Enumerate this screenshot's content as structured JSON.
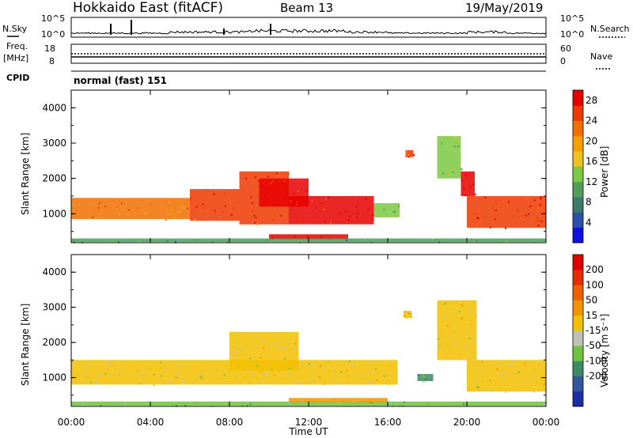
{
  "header": {
    "station": "Hokkaido East (fitACF)",
    "beam": "Beam 13",
    "date": "19/May/2019"
  },
  "top_panels": {
    "nsky_label": "N.Sky",
    "nsky_ticks": [
      "10^5",
      "10^0"
    ],
    "nsearch_label": "N.Search",
    "nsearch_ticks": [
      "10^5",
      "10^0"
    ],
    "freq_label_line1": "Freq.",
    "freq_label_line2": "[MHz]",
    "freq_ticks": [
      "18",
      "8"
    ],
    "nave_label": "Nave",
    "nave_ticks": [
      "60",
      "0"
    ],
    "cpid_label": "CPID",
    "cpid_value": "normal (fast) 151"
  },
  "colors": {
    "power_scale": [
      "#1010e0",
      "#2c4fa8",
      "#3c7a6a",
      "#4f9e5a",
      "#7cc840",
      "#f0c020",
      "#f5a000",
      "#f27000",
      "#ee3a00",
      "#e80000"
    ],
    "velocity_scale": [
      "#1a2ea8",
      "#34569c",
      "#3f8a66",
      "#6fc43e",
      "#c0c0b8",
      "#f2c000",
      "#f29400",
      "#ee6000",
      "#e82c00",
      "#e00000"
    ]
  },
  "chart_data": [
    {
      "type": "heatmap",
      "title": "",
      "xlabel": "Time UT",
      "ylabel": "Slant Range [km]",
      "x_ticks": [
        "00:00",
        "04:00",
        "08:00",
        "12:00",
        "16:00",
        "20:00",
        "00:00"
      ],
      "x_range_hours": [
        0,
        24
      ],
      "y_ticks": [
        "1000",
        "2000",
        "3000",
        "4000"
      ],
      "y_range_km": [
        180,
        4500
      ],
      "colorbar_label": "Power [dB]",
      "colorbar_ticks": [
        "4",
        "8",
        "12",
        "16",
        "20",
        "24",
        "28"
      ],
      "colorbar_range": [
        0,
        30
      ],
      "regions": [
        {
          "t0": 0.0,
          "t1": 6.0,
          "r0": 850,
          "r1": 1450,
          "value": 22
        },
        {
          "t0": 6.0,
          "t1": 8.5,
          "r0": 800,
          "r1": 1700,
          "value": 24
        },
        {
          "t0": 8.5,
          "t1": 11.0,
          "r0": 700,
          "r1": 2200,
          "value": 26
        },
        {
          "t0": 9.5,
          "t1": 12.0,
          "r0": 1200,
          "r1": 2000,
          "value": 28
        },
        {
          "t0": 11.0,
          "t1": 15.3,
          "r0": 700,
          "r1": 1500,
          "value": 28
        },
        {
          "t0": 10.0,
          "t1": 14.0,
          "r0": 280,
          "r1": 420,
          "value": 28
        },
        {
          "t0": 0.0,
          "t1": 16.5,
          "r0": 200,
          "r1": 300,
          "value": 10
        },
        {
          "t0": 15.3,
          "t1": 16.6,
          "r0": 900,
          "r1": 1300,
          "value": 14
        },
        {
          "t0": 16.9,
          "t1": 17.3,
          "r0": 2600,
          "r1": 2800,
          "value": 24
        },
        {
          "t0": 18.5,
          "t1": 19.7,
          "r0": 2000,
          "r1": 3200,
          "value": 14
        },
        {
          "t0": 19.7,
          "t1": 20.4,
          "r0": 1500,
          "r1": 2200,
          "value": 28
        },
        {
          "t0": 20.0,
          "t1": 24.0,
          "r0": 600,
          "r1": 1500,
          "value": 26
        },
        {
          "t0": 16.5,
          "t1": 24.0,
          "r0": 200,
          "r1": 300,
          "value": 10
        }
      ]
    },
    {
      "type": "heatmap",
      "title": "",
      "xlabel": "Time UT",
      "ylabel": "Slant Range [km]",
      "x_ticks": [
        "00:00",
        "04:00",
        "08:00",
        "12:00",
        "16:00",
        "20:00",
        "00:00"
      ],
      "x_range_hours": [
        0,
        24
      ],
      "y_ticks": [
        "1000",
        "2000",
        "3000",
        "4000"
      ],
      "y_range_km": [
        180,
        4500
      ],
      "colorbar_label": "Velocity [m s⁻¹]",
      "colorbar_ticks": [
        "200",
        "100",
        "50",
        "15",
        "-15",
        "-50",
        "-100",
        "-200"
      ],
      "colorbar_range": [
        -250,
        250
      ],
      "regions": [
        {
          "t0": 0.0,
          "t1": 16.5,
          "r0": 800,
          "r1": 1500,
          "value": 0
        },
        {
          "t0": 8.0,
          "t1": 11.5,
          "r0": 1200,
          "r1": 2300,
          "value": 0
        },
        {
          "t0": 16.8,
          "t1": 17.2,
          "r0": 2700,
          "r1": 2900,
          "value": 0
        },
        {
          "t0": 18.5,
          "t1": 20.5,
          "r0": 1500,
          "r1": 3200,
          "value": 0
        },
        {
          "t0": 20.0,
          "t1": 24.0,
          "r0": 600,
          "r1": 1500,
          "value": 0
        },
        {
          "t0": 0.0,
          "t1": 24.0,
          "r0": 200,
          "r1": 320,
          "value": -70
        },
        {
          "t0": 11.0,
          "t1": 16.0,
          "r0": 300,
          "r1": 420,
          "value": 60
        },
        {
          "t0": 17.5,
          "t1": 18.3,
          "r0": 900,
          "r1": 1100,
          "value": -120
        }
      ]
    }
  ]
}
